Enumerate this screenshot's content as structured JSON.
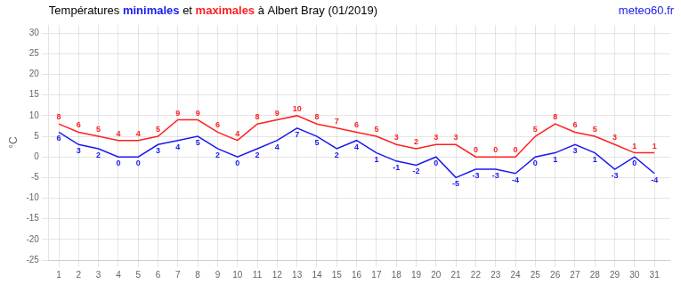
{
  "chart_data": {
    "type": "line",
    "title": "Températures minimales et maximales à Albert Bray (01/2019)",
    "x": [
      1,
      2,
      3,
      4,
      5,
      6,
      7,
      8,
      9,
      10,
      11,
      12,
      13,
      14,
      15,
      16,
      17,
      18,
      19,
      20,
      21,
      22,
      23,
      24,
      25,
      26,
      27,
      28,
      29,
      30,
      31
    ],
    "series": [
      {
        "name": "maximales",
        "color": "#ff2020",
        "values": [
          8,
          6,
          5,
          4,
          4,
          5,
          9,
          9,
          6,
          4,
          8,
          9,
          10,
          8,
          7,
          6,
          5,
          3,
          2,
          3,
          3,
          0,
          0,
          0,
          5,
          8,
          6,
          5,
          3,
          1,
          1
        ]
      },
      {
        "name": "minimales",
        "color": "#1a1aee",
        "values": [
          6,
          3,
          2,
          0,
          0,
          3,
          4,
          5,
          2,
          0,
          2,
          4,
          7,
          5,
          2,
          4,
          1,
          -1,
          -2,
          0,
          -5,
          -3,
          -3,
          -4,
          0,
          1,
          3,
          1,
          -3,
          0,
          -4
        ]
      }
    ],
    "y_label": "°C",
    "xlim": [
      0.5,
      31.8
    ],
    "xticks": [
      1,
      2,
      3,
      4,
      5,
      6,
      7,
      8,
      9,
      10,
      11,
      12,
      13,
      14,
      15,
      16,
      17,
      18,
      19,
      20,
      21,
      22,
      23,
      24,
      25,
      26,
      27,
      28,
      29,
      30,
      31
    ],
    "ylim": [
      -25,
      32
    ],
    "yticks": [
      -25,
      -20,
      -15,
      -10,
      -5,
      0,
      5,
      10,
      15,
      20,
      25,
      30
    ],
    "grid": true,
    "data_labels": true,
    "annotations": [
      {
        "text": "meteo60.fr",
        "color": "#1a1aee"
      }
    ]
  }
}
